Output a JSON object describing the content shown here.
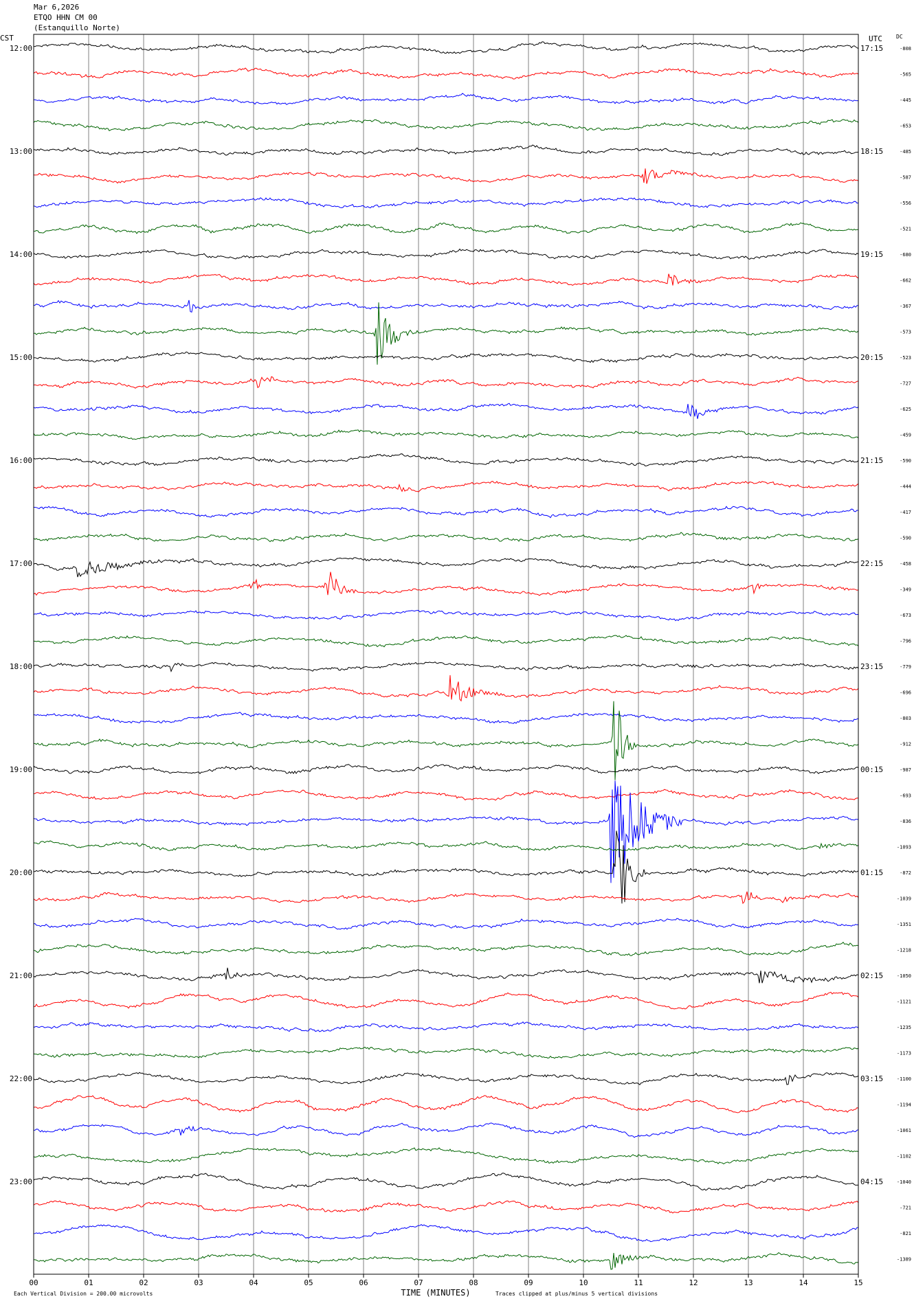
{
  "header": {
    "date": "Mar 6,2026",
    "station": "ETQO HHN CM 00",
    "site": "(Estanquillo Norte)"
  },
  "left_tz": "CST",
  "right_tz": "UTC",
  "dc_label": "DC",
  "colors": {
    "trace_cycle": [
      "#000000",
      "#ff0000",
      "#0000ff",
      "#006400"
    ],
    "grid": "#808080",
    "frame": "#000000"
  },
  "footer": {
    "scale_note": "Each Vertical Division =  200.00 microvolts",
    "xlabel": "TIME (MINUTES)",
    "clip_note": "Traces clipped at plus/minus 5 vertical divisions"
  },
  "chart_data": {
    "type": "line",
    "title": "Mar 6,2026 ETQO HHN CM 00 (Estanquillo Norte)",
    "xlabel": "TIME (MINUTES)",
    "xlim": [
      0,
      15
    ],
    "x_ticks": [
      "00",
      "01",
      "02",
      "03",
      "04",
      "05",
      "06",
      "07",
      "08",
      "09",
      "10",
      "11",
      "12",
      "13",
      "14",
      "15"
    ],
    "left_time_labels": [
      "12:00",
      "13:00",
      "14:00",
      "15:00",
      "16:00",
      "17:00",
      "18:00",
      "19:00",
      "20:00",
      "21:00",
      "22:00",
      "23:00"
    ],
    "right_time_labels": [
      "17:15",
      "18:15",
      "19:15",
      "20:15",
      "21:15",
      "22:15",
      "23:15",
      "00:15",
      "01:15",
      "02:15",
      "03:15",
      "04:15"
    ],
    "dc_offsets": [
      "-808",
      "-565",
      "-445",
      "-653",
      "-485",
      "-587",
      "-556",
      "-521",
      "-680",
      "-662",
      "-367",
      "-573",
      "-523",
      "-727",
      "-625",
      "-459",
      "-590",
      "-444",
      "-417",
      "-590",
      "-458",
      "-349",
      "-673",
      "-796",
      "-779",
      "-696",
      "-803",
      "-912",
      "-987",
      "-693",
      "-836",
      "-1093",
      "-872",
      "-1039",
      "-1351",
      "-1218",
      "-1050",
      "-1121",
      "-1235",
      "-1173",
      "-1100",
      "-1194",
      "-1061",
      "-1102",
      "-1040",
      "-721",
      "-821",
      "-1389"
    ],
    "rows": 48,
    "minutes_per_row": 15,
    "grid": "vertical minute lines",
    "events": [
      {
        "row": 5,
        "minute": 11.1,
        "amp": 0.6,
        "dur": 1.2
      },
      {
        "row": 9,
        "minute": 11.55,
        "amp": 0.8,
        "dur": 0.7
      },
      {
        "row": 10,
        "minute": 2.8,
        "amp": 0.5,
        "dur": 0.5
      },
      {
        "row": 11,
        "minute": 6.25,
        "amp": 2.8,
        "dur": 0.6
      },
      {
        "row": 13,
        "minute": 4.0,
        "amp": 0.8,
        "dur": 0.6
      },
      {
        "row": 14,
        "minute": 11.9,
        "amp": 0.7,
        "dur": 0.8
      },
      {
        "row": 17,
        "minute": 6.6,
        "amp": 0.4,
        "dur": 0.5
      },
      {
        "row": 20,
        "minute": 0.8,
        "amp": 0.6,
        "dur": 2.4
      },
      {
        "row": 21,
        "minute": 5.35,
        "amp": 1.8,
        "dur": 0.5
      },
      {
        "row": 21,
        "minute": 4.0,
        "amp": 0.8,
        "dur": 0.2
      },
      {
        "row": 21,
        "minute": 13.1,
        "amp": 0.5,
        "dur": 0.3
      },
      {
        "row": 24,
        "minute": 2.5,
        "amp": 0.5,
        "dur": 0.4
      },
      {
        "row": 25,
        "minute": 7.55,
        "amp": 1.3,
        "dur": 0.9
      },
      {
        "row": 27,
        "minute": 10.55,
        "amp": 5.0,
        "dur": 0.4
      },
      {
        "row": 30,
        "minute": 10.5,
        "amp": 5.0,
        "dur": 1.3
      },
      {
        "row": 32,
        "minute": 10.6,
        "amp": 5.0,
        "dur": 0.5
      },
      {
        "row": 31,
        "minute": 14.3,
        "amp": 0.5,
        "dur": 0.4
      },
      {
        "row": 33,
        "minute": 12.9,
        "amp": 0.7,
        "dur": 0.6
      },
      {
        "row": 33,
        "minute": 13.6,
        "amp": 0.4,
        "dur": 0.6
      },
      {
        "row": 36,
        "minute": 3.5,
        "amp": 0.6,
        "dur": 0.5
      },
      {
        "row": 36,
        "minute": 13.2,
        "amp": 0.7,
        "dur": 1.7
      },
      {
        "row": 40,
        "minute": 13.7,
        "amp": 0.5,
        "dur": 0.4
      },
      {
        "row": 42,
        "minute": 2.6,
        "amp": 0.6,
        "dur": 0.8
      },
      {
        "row": 47,
        "minute": 10.5,
        "amp": 0.8,
        "dur": 0.8
      }
    ]
  }
}
